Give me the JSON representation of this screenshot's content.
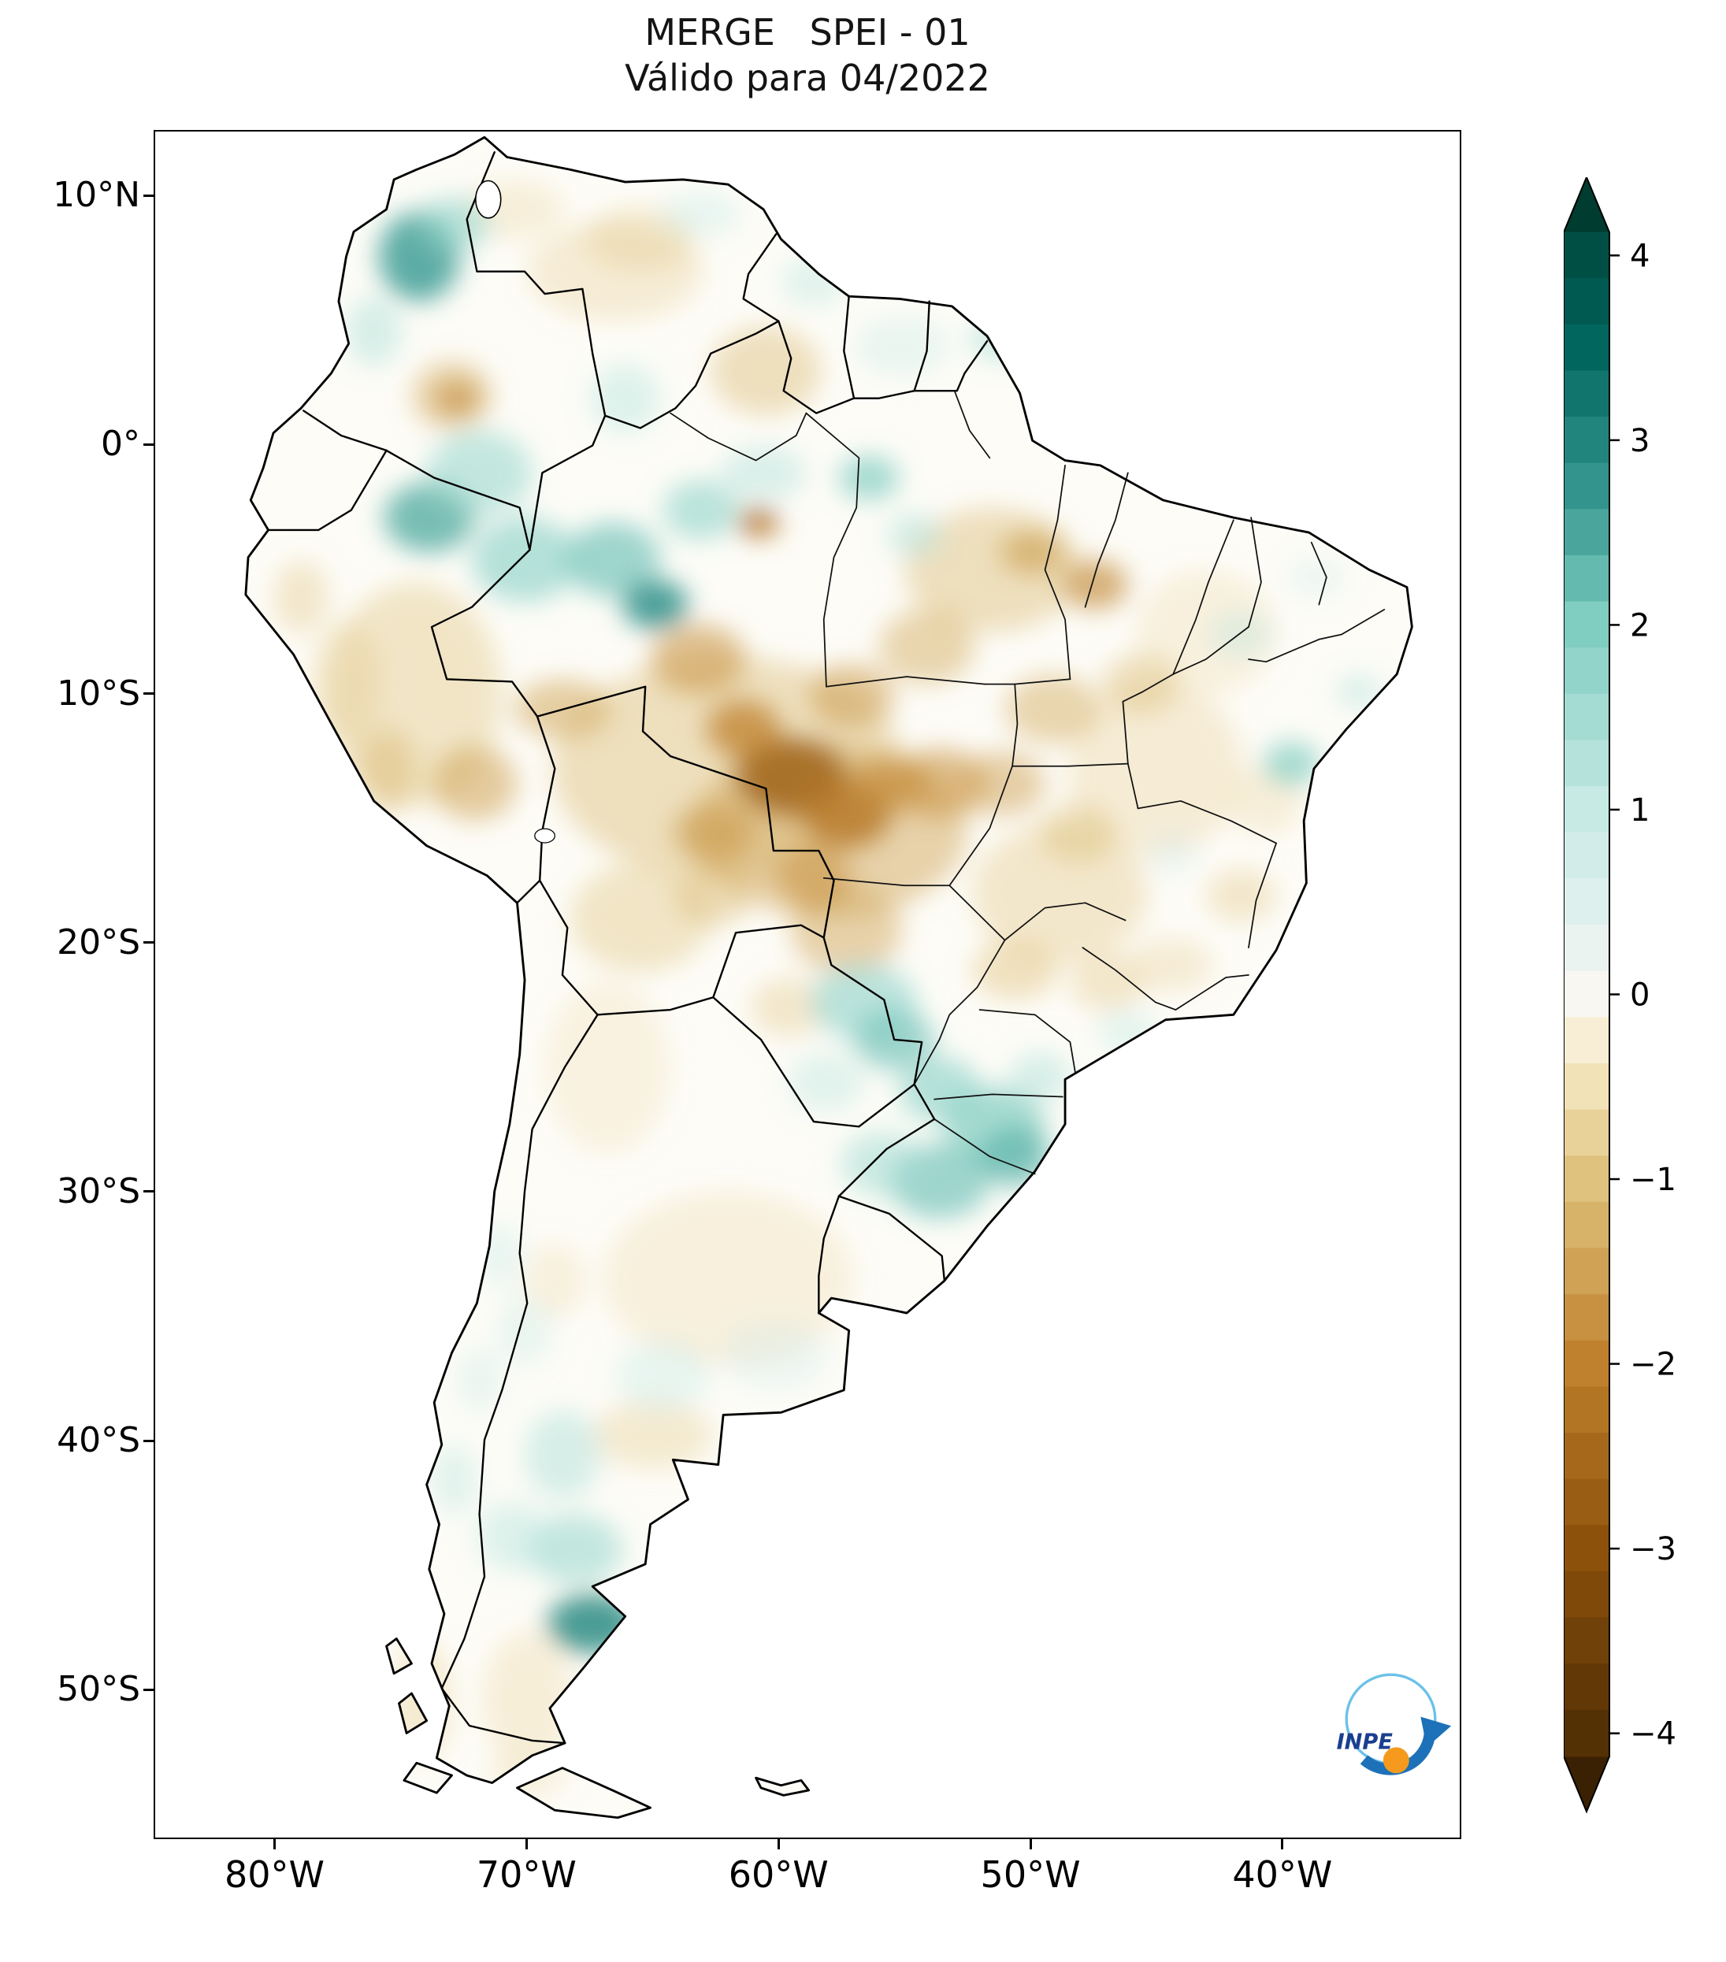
{
  "title": {
    "line1": "MERGE   SPEI - 01",
    "line2": "Válido para 04/2022"
  },
  "axes": {
    "x_ticks": [
      {
        "label": "80°W",
        "lon": -80
      },
      {
        "label": "70°W",
        "lon": -70
      },
      {
        "label": "60°W",
        "lon": -60
      },
      {
        "label": "50°W",
        "lon": -50
      },
      {
        "label": "40°W",
        "lon": -40
      }
    ],
    "y_ticks": [
      {
        "label": "10°N",
        "lat": 10
      },
      {
        "label": "0°",
        "lat": 0
      },
      {
        "label": "10°S",
        "lat": -10
      },
      {
        "label": "20°S",
        "lat": -20
      },
      {
        "label": "30°S",
        "lat": -30
      },
      {
        "label": "40°S",
        "lat": -40
      },
      {
        "label": "50°S",
        "lat": -50
      }
    ]
  },
  "colorbar": {
    "ticks": [
      {
        "label": "4",
        "value": 4
      },
      {
        "label": "3",
        "value": 3
      },
      {
        "label": "2",
        "value": 2
      },
      {
        "label": "1",
        "value": 1
      },
      {
        "label": "0",
        "value": 0
      },
      {
        "label": "−1",
        "value": -1
      },
      {
        "label": "−2",
        "value": -2
      },
      {
        "label": "−3",
        "value": -3
      },
      {
        "label": "−4",
        "value": -4
      }
    ],
    "extend": "both",
    "scale_stops": [
      {
        "v": -4.4,
        "c": "#3a2103"
      },
      {
        "v": -4.0,
        "c": "#543005"
      },
      {
        "v": -3.0,
        "c": "#8c510a"
      },
      {
        "v": -2.0,
        "c": "#bf812d"
      },
      {
        "v": -1.0,
        "c": "#dfc27d"
      },
      {
        "v": -0.4,
        "c": "#f6e8c3"
      },
      {
        "v": 0.0,
        "c": "#f8f7f2"
      },
      {
        "v": 0.4,
        "c": "#e2f1ee"
      },
      {
        "v": 1.0,
        "c": "#c7eae5"
      },
      {
        "v": 2.0,
        "c": "#80cdc1"
      },
      {
        "v": 2.7,
        "c": "#35978f"
      },
      {
        "v": 3.5,
        "c": "#01665e"
      },
      {
        "v": 4.4,
        "c": "#003c30"
      }
    ]
  },
  "logo": {
    "text": "INPE"
  },
  "chart_data": {
    "type": "heatmap",
    "title": "MERGE   SPEI - 01",
    "subtitle": "Válido para 04/2022",
    "product": "MERGE",
    "index": "SPEI-01",
    "valid_for": "04/2022",
    "region": "South America",
    "projection": "lat/lon plate carrée",
    "lon_range": [
      -84.8,
      -32.9
    ],
    "lat_range": [
      -56.0,
      12.63
    ],
    "x_tick_labels": [
      "80°W",
      "70°W",
      "60°W",
      "50°W",
      "40°W"
    ],
    "y_tick_labels": [
      "10°N",
      "0°",
      "10°S",
      "20°S",
      "30°S",
      "40°S",
      "50°S"
    ],
    "colorbar_ticks": [
      4,
      3,
      2,
      1,
      0,
      -1,
      -2,
      -3,
      -4
    ],
    "colorbar_range": [
      -4,
      4
    ],
    "colorbar_extend": "both",
    "patches_format": [
      "lon",
      "lat",
      "rx_deg",
      "ry_deg",
      "spei",
      "opacity"
    ],
    "anomaly_patches": [
      [
        -62.0,
        -13.0,
        7.0,
        4.5,
        -1.1,
        0.45
      ],
      [
        -58.0,
        -15.5,
        5.5,
        3.5,
        -1.4,
        0.5
      ],
      [
        -74.5,
        -10.0,
        3.5,
        4.5,
        -1.0,
        0.4
      ],
      [
        -66.5,
        7.0,
        3.5,
        2.0,
        -0.8,
        0.35
      ],
      [
        -70.5,
        9.5,
        2.0,
        1.2,
        -0.8,
        0.3
      ],
      [
        -62.0,
        -33.5,
        5.0,
        3.5,
        -0.7,
        0.3
      ],
      [
        -66.8,
        -25.0,
        2.5,
        3.5,
        -0.6,
        0.3
      ],
      [
        -45.0,
        -13.0,
        3.5,
        3.5,
        -0.8,
        0.35
      ],
      [
        -48.8,
        -18.0,
        3.5,
        2.8,
        -0.9,
        0.4
      ],
      [
        -43.0,
        -7.5,
        2.8,
        2.5,
        -0.7,
        0.3
      ],
      [
        -51.5,
        -5.0,
        3.5,
        2.5,
        -1.1,
        0.45
      ],
      [
        -60.5,
        3.0,
        2.2,
        1.8,
        -1.1,
        0.45
      ],
      [
        -65.5,
        -19.0,
        2.8,
        2.2,
        -1.0,
        0.4
      ],
      [
        -57.3,
        -19.5,
        2.2,
        1.8,
        -1.4,
        0.5
      ],
      [
        -70.0,
        -50.5,
        1.8,
        2.8,
        -0.7,
        0.35
      ],
      [
        -74.2,
        -50.5,
        1.2,
        2.5,
        -0.8,
        0.4
      ],
      [
        -65.0,
        -39.8,
        2.4,
        1.4,
        -0.9,
        0.35
      ],
      [
        -73.0,
        2.0,
        1.6,
        1.4,
        -1.3,
        0.5
      ],
      [
        -77.2,
        -9.5,
        1.4,
        2.4,
        -0.9,
        0.35
      ],
      [
        -70.0,
        -53.5,
        1.6,
        1.0,
        -0.6,
        0.3
      ],
      [
        -65.5,
        8.3,
        2.2,
        1.3,
        -0.9,
        0.35
      ],
      [
        -59.5,
        -13.3,
        2.2,
        1.6,
        -2.6,
        0.85
      ],
      [
        -57.3,
        -14.8,
        1.8,
        1.4,
        -2.2,
        0.8
      ],
      [
        -61.4,
        -11.4,
        1.5,
        1.2,
        -2.0,
        0.75
      ],
      [
        -55.6,
        -13.6,
        1.5,
        1.1,
        -1.8,
        0.65
      ],
      [
        -60.8,
        -3.1,
        0.8,
        0.6,
        -2.3,
        0.85
      ],
      [
        -47.4,
        -5.6,
        1.3,
        1.0,
        -1.9,
        0.65
      ],
      [
        -49.9,
        -4.3,
        1.3,
        0.9,
        -1.6,
        0.6
      ],
      [
        -72.8,
        1.9,
        0.9,
        0.7,
        -1.8,
        0.65
      ],
      [
        -58.6,
        -17.4,
        1.5,
        1.2,
        -1.7,
        0.6
      ],
      [
        -53.6,
        -13.6,
        1.9,
        1.4,
        -1.7,
        0.6
      ],
      [
        -62.6,
        -15.6,
        1.6,
        1.2,
        -1.7,
        0.55
      ],
      [
        -63.2,
        -8.6,
        1.9,
        1.4,
        -1.7,
        0.6
      ],
      [
        -68.6,
        -10.6,
        1.9,
        1.2,
        -1.4,
        0.55
      ],
      [
        -72.1,
        -13.6,
        1.7,
        1.5,
        -1.5,
        0.55
      ],
      [
        -75.6,
        -13.1,
        1.2,
        1.7,
        -1.2,
        0.45
      ],
      [
        -79.0,
        -6.1,
        1.1,
        1.5,
        -0.9,
        0.4
      ],
      [
        -57.1,
        -10.1,
        1.7,
        1.3,
        -1.6,
        0.55
      ],
      [
        -51.1,
        -13.6,
        1.7,
        1.3,
        -1.5,
        0.5
      ],
      [
        -48.1,
        -15.6,
        1.5,
        1.2,
        -1.1,
        0.45
      ],
      [
        -54.1,
        -8.1,
        1.9,
        1.5,
        -1.3,
        0.5
      ],
      [
        -49.1,
        -10.6,
        1.9,
        1.4,
        -1.3,
        0.5
      ],
      [
        -45.6,
        -9.6,
        1.5,
        1.2,
        -1.1,
        0.45
      ],
      [
        -59.6,
        -22.6,
        1.5,
        1.2,
        -0.9,
        0.4
      ],
      [
        -62.6,
        -18.1,
        1.5,
        1.2,
        -1.2,
        0.45
      ],
      [
        -50.6,
        -21.1,
        1.7,
        1.2,
        -1.0,
        0.45
      ],
      [
        -46.9,
        -21.6,
        1.5,
        1.2,
        -0.9,
        0.4
      ],
      [
        -44.4,
        -20.9,
        1.7,
        1.1,
        -0.8,
        0.35
      ],
      [
        -41.6,
        -18.1,
        1.4,
        1.1,
        -0.9,
        0.4
      ],
      [
        -40.6,
        -14.3,
        1.4,
        1.4,
        -0.7,
        0.35
      ],
      [
        -68.9,
        -33.6,
        1.2,
        1.5,
        -0.7,
        0.3
      ],
      [
        -74.3,
        7.6,
        1.6,
        1.8,
        2.6,
        0.85
      ],
      [
        -72.9,
        8.9,
        1.4,
        1.1,
        1.7,
        0.6
      ],
      [
        -76.1,
        4.6,
        1.1,
        1.4,
        1.3,
        0.5
      ],
      [
        -73.9,
        -2.9,
        1.8,
        1.4,
        2.4,
        0.8
      ],
      [
        -71.9,
        -1.1,
        2.1,
        1.7,
        1.6,
        0.6
      ],
      [
        -70.1,
        -4.6,
        2.1,
        1.7,
        1.8,
        0.65
      ],
      [
        -66.6,
        -4.6,
        1.9,
        1.5,
        2.1,
        0.7
      ],
      [
        -64.9,
        -6.4,
        1.3,
        1.0,
        2.8,
        0.85
      ],
      [
        -63.1,
        -2.6,
        1.5,
        1.2,
        1.8,
        0.6
      ],
      [
        -60.6,
        -1.1,
        1.7,
        1.1,
        1.2,
        0.5
      ],
      [
        -56.4,
        -1.3,
        1.2,
        0.9,
        2.0,
        0.7
      ],
      [
        -54.6,
        -3.6,
        1.1,
        0.9,
        1.3,
        0.5
      ],
      [
        -51.1,
        4.3,
        1.3,
        0.9,
        1.4,
        0.55
      ],
      [
        -55.1,
        4.0,
        1.9,
        1.2,
        0.9,
        0.4
      ],
      [
        -58.6,
        6.6,
        1.3,
        1.0,
        1.1,
        0.45
      ],
      [
        -63.1,
        9.3,
        1.6,
        0.9,
        1.0,
        0.4
      ],
      [
        -66.1,
        1.9,
        1.4,
        1.4,
        1.2,
        0.45
      ],
      [
        -39.6,
        -12.8,
        1.1,
        0.9,
        2.0,
        0.7
      ],
      [
        -41.6,
        -7.6,
        1.2,
        0.9,
        1.1,
        0.45
      ],
      [
        -38.6,
        -5.3,
        1.2,
        0.8,
        0.8,
        0.35
      ],
      [
        -36.9,
        -9.9,
        0.9,
        0.7,
        1.2,
        0.5
      ],
      [
        -44.3,
        -16.4,
        1.0,
        0.9,
        0.8,
        0.35
      ],
      [
        -56.6,
        -22.4,
        2.1,
        1.5,
        1.7,
        0.65
      ],
      [
        -55.4,
        -23.9,
        1.6,
        1.2,
        2.1,
        0.7
      ],
      [
        -53.6,
        -25.9,
        1.6,
        1.3,
        1.8,
        0.65
      ],
      [
        -51.4,
        -27.4,
        2.0,
        1.6,
        2.0,
        0.7
      ],
      [
        -53.6,
        -29.6,
        2.0,
        1.5,
        2.1,
        0.7
      ],
      [
        -50.6,
        -28.6,
        1.4,
        1.2,
        2.3,
        0.75
      ],
      [
        -55.9,
        -28.9,
        1.6,
        1.3,
        1.5,
        0.55
      ],
      [
        -49.6,
        -25.4,
        1.2,
        1.0,
        1.3,
        0.5
      ],
      [
        -58.1,
        -25.6,
        1.5,
        1.2,
        1.1,
        0.45
      ],
      [
        -46.1,
        -23.6,
        1.2,
        0.9,
        1.0,
        0.45
      ],
      [
        -60.1,
        -36.6,
        2.1,
        1.4,
        0.8,
        0.35
      ],
      [
        -64.6,
        -37.4,
        1.9,
        1.4,
        1.0,
        0.4
      ],
      [
        -68.6,
        -40.6,
        1.5,
        1.8,
        1.3,
        0.5
      ],
      [
        -70.1,
        -35.6,
        1.1,
        1.4,
        0.9,
        0.4
      ],
      [
        -68.1,
        -44.4,
        1.9,
        1.4,
        1.6,
        0.6
      ],
      [
        -67.4,
        -47.4,
        1.8,
        1.2,
        2.9,
        0.85
      ],
      [
        -70.6,
        -43.9,
        1.4,
        1.4,
        1.2,
        0.45
      ],
      [
        -71.1,
        -32.6,
        0.9,
        1.3,
        1.0,
        0.4
      ],
      [
        -71.9,
        -37.6,
        0.9,
        1.3,
        0.9,
        0.4
      ],
      [
        -72.9,
        -41.6,
        0.9,
        1.4,
        1.1,
        0.45
      ]
    ]
  }
}
